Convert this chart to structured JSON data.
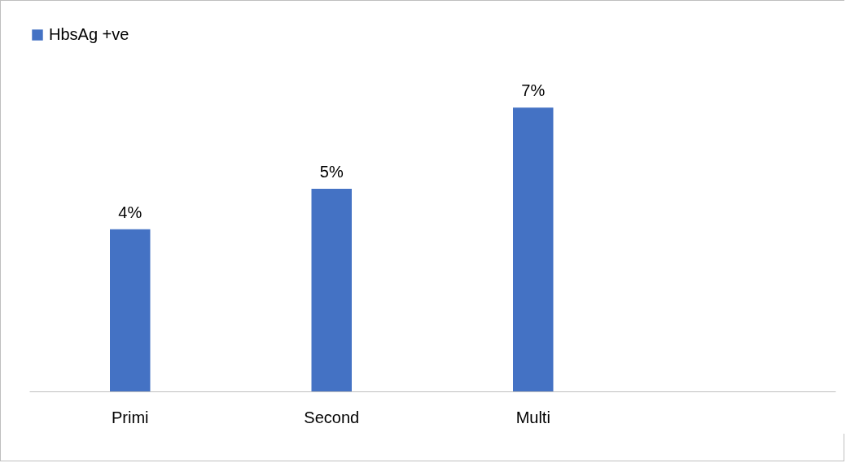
{
  "chart_data": {
    "type": "bar",
    "categories": [
      "Primi",
      "Second",
      "Multi",
      null
    ],
    "series": [
      {
        "name": "HbsAg +ve",
        "color": "#4472c4",
        "values": [
          4,
          5,
          7,
          null
        ],
        "value_labels": [
          "4%",
          "5%",
          "7%",
          null
        ]
      }
    ],
    "legend": "top",
    "grid": false
  }
}
